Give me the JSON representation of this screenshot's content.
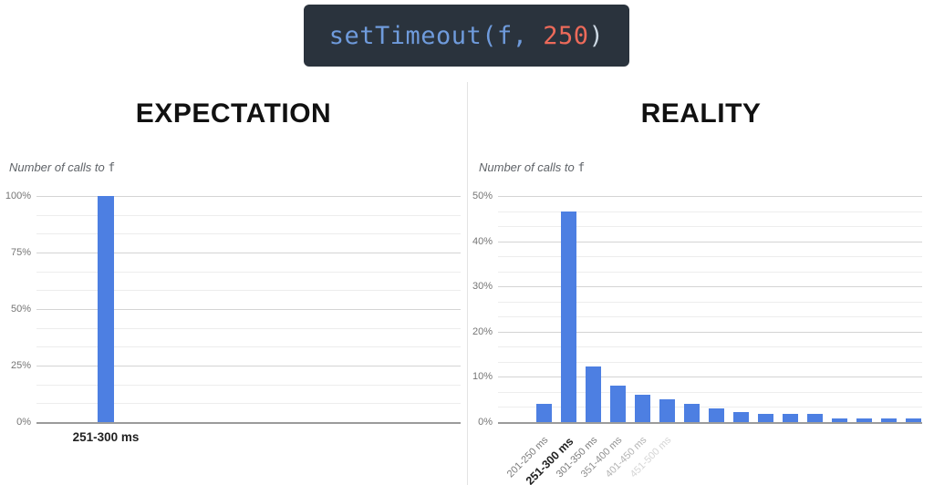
{
  "code_snippet": {
    "text": "setTimeout(f, 250)",
    "background": "#2a333d",
    "segments": [
      {
        "text": "setTimeout(f, ",
        "color": "#6f9bdc"
      },
      {
        "text": "250",
        "color": "#ec6a5a"
      },
      {
        "text": ")",
        "color": "#ccd8e3"
      }
    ]
  },
  "chart_data": [
    {
      "type": "bar",
      "title": "EXPECTATION",
      "ylabel": "Number of calls to f",
      "ylabel_prefix": "Number of calls to ",
      "ylabel_code": "f",
      "categories": [
        "251-300 ms"
      ],
      "values": [
        100
      ],
      "ylim": [
        0,
        100
      ],
      "yticks": [
        0,
        25,
        50,
        75,
        100
      ],
      "ytick_suffix": "%",
      "minor_gridlines_per_interval": 2,
      "grid": true,
      "legend_position": "none",
      "bold_category_index": 0,
      "bar_color": "#4d7fe2"
    },
    {
      "type": "bar",
      "title": "REALITY",
      "ylabel": "Number of calls to f",
      "ylabel_prefix": "Number of calls to ",
      "ylabel_code": "f",
      "categories": [
        "201-250 ms",
        "251-300 ms",
        "301-350 ms",
        "351-400 ms",
        "401-450 ms",
        "451-500 ms",
        "",
        "",
        "",
        "",
        "",
        "",
        "",
        "",
        "",
        ""
      ],
      "values": [
        4,
        46.5,
        12.3,
        8,
        6,
        5,
        4,
        3,
        2.3,
        1.8,
        1.8,
        1.8,
        0.9,
        0.9,
        0.9,
        0.9
      ],
      "ylim": [
        0,
        50
      ],
      "yticks": [
        0,
        10,
        20,
        30,
        40,
        50
      ],
      "ytick_suffix": "%",
      "minor_gridlines_per_interval": 2,
      "grid": true,
      "legend_position": "none",
      "bold_category_index": 1,
      "category_label_opacities": [
        0.95,
        1,
        0.95,
        0.8,
        0.55,
        0.3,
        0,
        0,
        0,
        0,
        0,
        0,
        0,
        0,
        0,
        0
      ],
      "bar_color": "#4d7fe2"
    }
  ]
}
